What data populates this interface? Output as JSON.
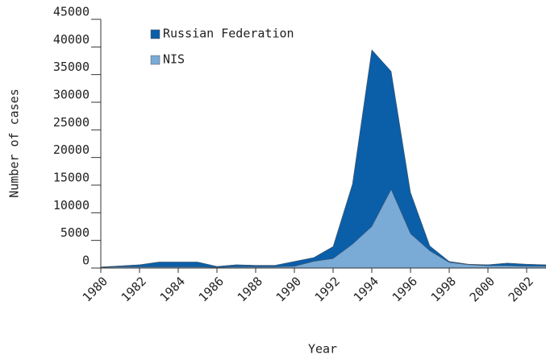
{
  "chart_data": {
    "type": "area",
    "xlabel": "Year",
    "ylabel": "Number of cases",
    "x": [
      1980,
      1981,
      1982,
      1983,
      1984,
      1985,
      1986,
      1987,
      1988,
      1989,
      1990,
      1991,
      1992,
      1993,
      1994,
      1995,
      1996,
      1997,
      1998,
      1999,
      2000,
      2001,
      2002,
      2003
    ],
    "series": [
      {
        "name": "Russian Federation",
        "color": "#0b5ea8",
        "values": [
          200,
          400,
          600,
          1100,
          1100,
          1100,
          300,
          600,
          500,
          500,
          1200,
          1900,
          3900,
          15200,
          39500,
          35600,
          13700,
          4000,
          1200,
          700,
          600,
          900,
          700,
          600
        ]
      },
      {
        "name": "NIS",
        "color": "#7aaad6",
        "values": [
          100,
          200,
          200,
          200,
          200,
          200,
          100,
          200,
          200,
          200,
          300,
          1200,
          1700,
          4300,
          7500,
          14200,
          6200,
          3100,
          1000,
          600,
          400,
          400,
          300,
          300
        ]
      }
    ],
    "xlim": [
      1980,
      2003
    ],
    "xticks": [
      1980,
      1982,
      1984,
      1986,
      1988,
      1990,
      1992,
      1994,
      1996,
      1998,
      2000,
      2002
    ],
    "ylim": [
      0,
      45000
    ],
    "yticks": [
      0,
      5000,
      10000,
      15000,
      20000,
      25000,
      30000,
      35000,
      40000,
      45000
    ],
    "legend": "upper left"
  }
}
